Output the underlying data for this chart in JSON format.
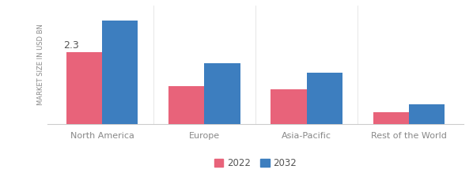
{
  "categories": [
    "North America",
    "Europe",
    "Asia-Pacific",
    "Rest of the World"
  ],
  "values_2022": [
    2.3,
    1.2,
    1.1,
    0.38
  ],
  "values_2032": [
    3.3,
    1.95,
    1.65,
    0.62
  ],
  "color_2022": "#e8637a",
  "color_2032": "#3d7ebf",
  "ylabel": "MARKET SIZE IN USD BN",
  "annotation_text": "2.3",
  "legend_labels": [
    "2022",
    "2032"
  ],
  "bar_width": 0.35,
  "ylim": [
    0,
    3.8
  ],
  "background_color": "#ffffff",
  "tick_color": "#888888",
  "label_color": "#888888"
}
